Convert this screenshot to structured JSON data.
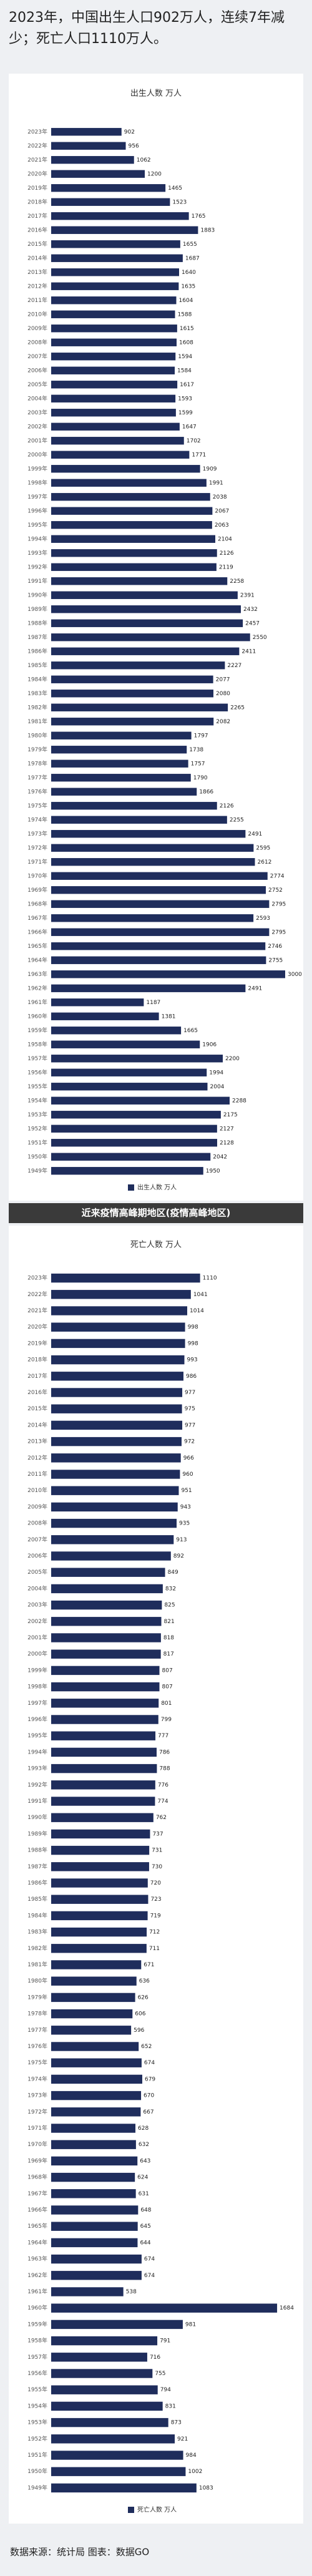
{
  "title": "2023年，中国出生人口902万人，连续7年减少；死亡人口1110万人。",
  "banner": "近来疫情高峰期地区(疫情高峰地区)",
  "source": "数据来源：统计局  图表：数据GO",
  "chart_data": [
    {
      "type": "bar",
      "title": "出生人数 万人",
      "categories": [
        "2023年",
        "2022年",
        "2021年",
        "2020年",
        "2019年",
        "2018年",
        "2017年",
        "2016年",
        "2015年",
        "2014年",
        "2013年",
        "2012年",
        "2011年",
        "2010年",
        "2009年",
        "2008年",
        "2007年",
        "2006年",
        "2005年",
        "2004年",
        "2003年",
        "2002年",
        "2001年",
        "2000年",
        "1999年",
        "1998年",
        "1997年",
        "1996年",
        "1995年",
        "1994年",
        "1993年",
        "1992年",
        "1991年",
        "1990年",
        "1989年",
        "1988年",
        "1987年",
        "1986年",
        "1985年",
        "1984年",
        "1983年",
        "1982年",
        "1981年",
        "1980年",
        "1979年",
        "1978年",
        "1977年",
        "1976年",
        "1975年",
        "1974年",
        "1973年",
        "1972年",
        "1971年",
        "1970年",
        "1969年",
        "1968年",
        "1967年",
        "1966年",
        "1965年",
        "1964年",
        "1963年",
        "1962年",
        "1961年",
        "1960年",
        "1959年",
        "1958年",
        "1957年",
        "1956年",
        "1955年",
        "1954年",
        "1953年",
        "1952年",
        "1951年",
        "1950年",
        "1949年"
      ],
      "series": [
        {
          "name": "出生人数 万人",
          "color": "#1f2d5c",
          "values": [
            902,
            956,
            1062,
            1200,
            1465,
            1523,
            1765,
            1883,
            1655,
            1687,
            1640,
            1635,
            1604,
            1588,
            1615,
            1608,
            1594,
            1584,
            1617,
            1593,
            1599,
            1647,
            1702,
            1771,
            1909,
            1991,
            2038,
            2067,
            2063,
            2104,
            2126,
            2119,
            2258,
            2391,
            2432,
            2457,
            2550,
            2411,
            2227,
            2077,
            2080,
            2265,
            2082,
            1797,
            1738,
            1757,
            1790,
            1866,
            2126,
            2255,
            2491,
            2595,
            2612,
            2774,
            2752,
            2795,
            2593,
            2795,
            2746,
            2755,
            3000,
            2491,
            1187,
            1381,
            1665,
            1906,
            2200,
            1994,
            2004,
            2288,
            2175,
            2127,
            2128,
            2042,
            1950
          ]
        }
      ]
    },
    {
      "type": "bar",
      "title": "死亡人数 万人",
      "categories": [
        "2023年",
        "2022年",
        "2021年",
        "2020年",
        "2019年",
        "2018年",
        "2017年",
        "2016年",
        "2015年",
        "2014年",
        "2013年",
        "2012年",
        "2011年",
        "2010年",
        "2009年",
        "2008年",
        "2007年",
        "2006年",
        "2005年",
        "2004年",
        "2003年",
        "2002年",
        "2001年",
        "2000年",
        "1999年",
        "1998年",
        "1997年",
        "1996年",
        "1995年",
        "1994年",
        "1993年",
        "1992年",
        "1991年",
        "1990年",
        "1989年",
        "1988年",
        "1987年",
        "1986年",
        "1985年",
        "1984年",
        "1983年",
        "1982年",
        "1981年",
        "1980年",
        "1979年",
        "1978年",
        "1977年",
        "1976年",
        "1975年",
        "1974年",
        "1973年",
        "1972年",
        "1971年",
        "1970年",
        "1969年",
        "1968年",
        "1967年",
        "1966年",
        "1965年",
        "1964年",
        "1963年",
        "1962年",
        "1961年",
        "1960年",
        "1959年",
        "1958年",
        "1957年",
        "1956年",
        "1955年",
        "1954年",
        "1953年",
        "1952年",
        "1951年",
        "1950年",
        "1949年"
      ],
      "series": [
        {
          "name": "死亡人数 万人",
          "color": "#1f2d5c",
          "values": [
            1110,
            1041,
            1014,
            998,
            998,
            993,
            986,
            977,
            975,
            977,
            972,
            966,
            960,
            951,
            943,
            935,
            913,
            892,
            849,
            832,
            825,
            821,
            818,
            817,
            807,
            807,
            801,
            799,
            777,
            786,
            788,
            776,
            774,
            762,
            737,
            731,
            730,
            720,
            723,
            719,
            712,
            711,
            671,
            636,
            626,
            606,
            596,
            652,
            674,
            679,
            670,
            667,
            628,
            632,
            643,
            624,
            631,
            648,
            645,
            644,
            674,
            674,
            538,
            1684,
            981,
            791,
            716,
            755,
            794,
            831,
            873,
            921,
            984,
            1002,
            1083
          ]
        }
      ]
    }
  ]
}
